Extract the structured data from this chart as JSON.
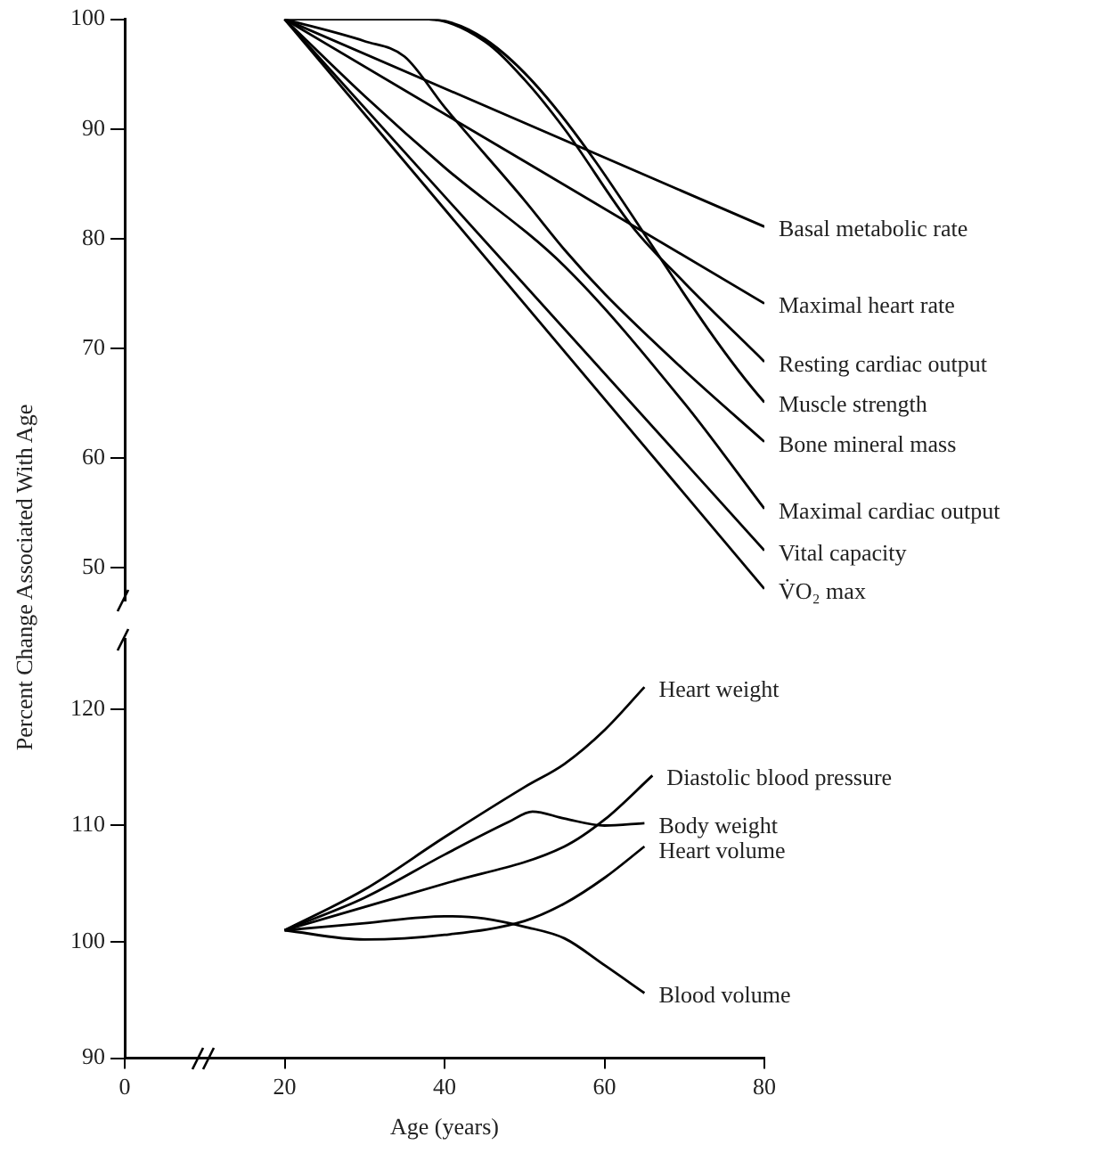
{
  "chart_data": [
    {
      "type": "line",
      "ylabel": "Percent Change Associated With Age",
      "xlim": [
        0,
        80
      ],
      "ylim": [
        47,
        100
      ],
      "yticks": [
        50,
        60,
        70,
        80,
        90,
        100
      ],
      "tick_labels": "y",
      "grid": false,
      "legend": false,
      "marker": "none",
      "series": [
        {
          "name": "Basal metabolic rate",
          "color": "#000000",
          "x": [
            20,
            80
          ],
          "values": [
            100,
            81.1
          ]
        },
        {
          "name": "Maximal heart rate",
          "color": "#000000",
          "x": [
            20,
            80
          ],
          "values": [
            100,
            74.1
          ]
        },
        {
          "name": "Resting cardiac output",
          "color": "#000000",
          "x": [
            20,
            38,
            45,
            50,
            55,
            63.6,
            70,
            80
          ],
          "values": [
            100,
            100,
            98,
            94.5,
            90,
            81,
            76,
            68.8
          ]
        },
        {
          "name": "Muscle strength",
          "color": "#000000",
          "x": [
            20,
            38,
            80
          ],
          "values": [
            100,
            100,
            65.1
          ]
        },
        {
          "name": "Bone mineral mass",
          "color": "#000000",
          "x": [
            20,
            30,
            35,
            40,
            50,
            55,
            60,
            70,
            80
          ],
          "values": [
            100,
            98,
            96.6,
            92,
            83.5,
            79,
            75,
            68,
            61.5
          ]
        },
        {
          "name": "Maximal cardiac output",
          "color": "#000000",
          "x": [
            20,
            30,
            40,
            55,
            70,
            80
          ],
          "values": [
            100,
            93,
            86.5,
            77.5,
            65,
            55.4
          ]
        },
        {
          "name": "Vital capacity",
          "color": "#000000",
          "x": [
            20,
            80
          ],
          "values": [
            100,
            51.6
          ]
        },
        {
          "name": "V̇O₂ max",
          "color": "#000000",
          "x": [
            20,
            80
          ],
          "values": [
            100,
            48.1
          ]
        }
      ]
    },
    {
      "type": "line",
      "xlabel": "Age (years)",
      "xlim": [
        0,
        80
      ],
      "xticks": [
        0,
        20,
        40,
        60,
        80
      ],
      "ylim": [
        90,
        126
      ],
      "yticks": [
        90,
        100,
        110,
        120
      ],
      "grid": false,
      "legend": false,
      "marker": "none",
      "series": [
        {
          "name": "Heart weight",
          "color": "#000000",
          "x": [
            20,
            30,
            40,
            50,
            55,
            60,
            65
          ],
          "values": [
            101,
            104.5,
            109,
            113.3,
            115.3,
            118.2,
            121.9
          ]
        },
        {
          "name": "Diastolic blood pressure",
          "color": "#000000",
          "x": [
            20,
            30,
            40,
            55,
            60,
            66
          ],
          "values": [
            101,
            103,
            105,
            108.2,
            110.5,
            114.3
          ]
        },
        {
          "name": "Body weight",
          "color": "#000000",
          "x": [
            20,
            30,
            40,
            48,
            51,
            55,
            60,
            65
          ],
          "values": [
            101,
            103.8,
            107.5,
            110.3,
            111.2,
            110.6,
            110,
            110.2
          ]
        },
        {
          "name": "Heart volume",
          "color": "#000000",
          "x": [
            20,
            30,
            40,
            50,
            55,
            60,
            65
          ],
          "values": [
            101,
            100.2,
            100.6,
            101.8,
            103.3,
            105.5,
            108.2
          ]
        },
        {
          "name": "Blood volume",
          "color": "#000000",
          "x": [
            20,
            30,
            40,
            45,
            50,
            55,
            60,
            65
          ],
          "values": [
            101,
            101.6,
            102.2,
            102,
            101.3,
            100.3,
            98,
            95.6
          ]
        }
      ]
    }
  ]
}
